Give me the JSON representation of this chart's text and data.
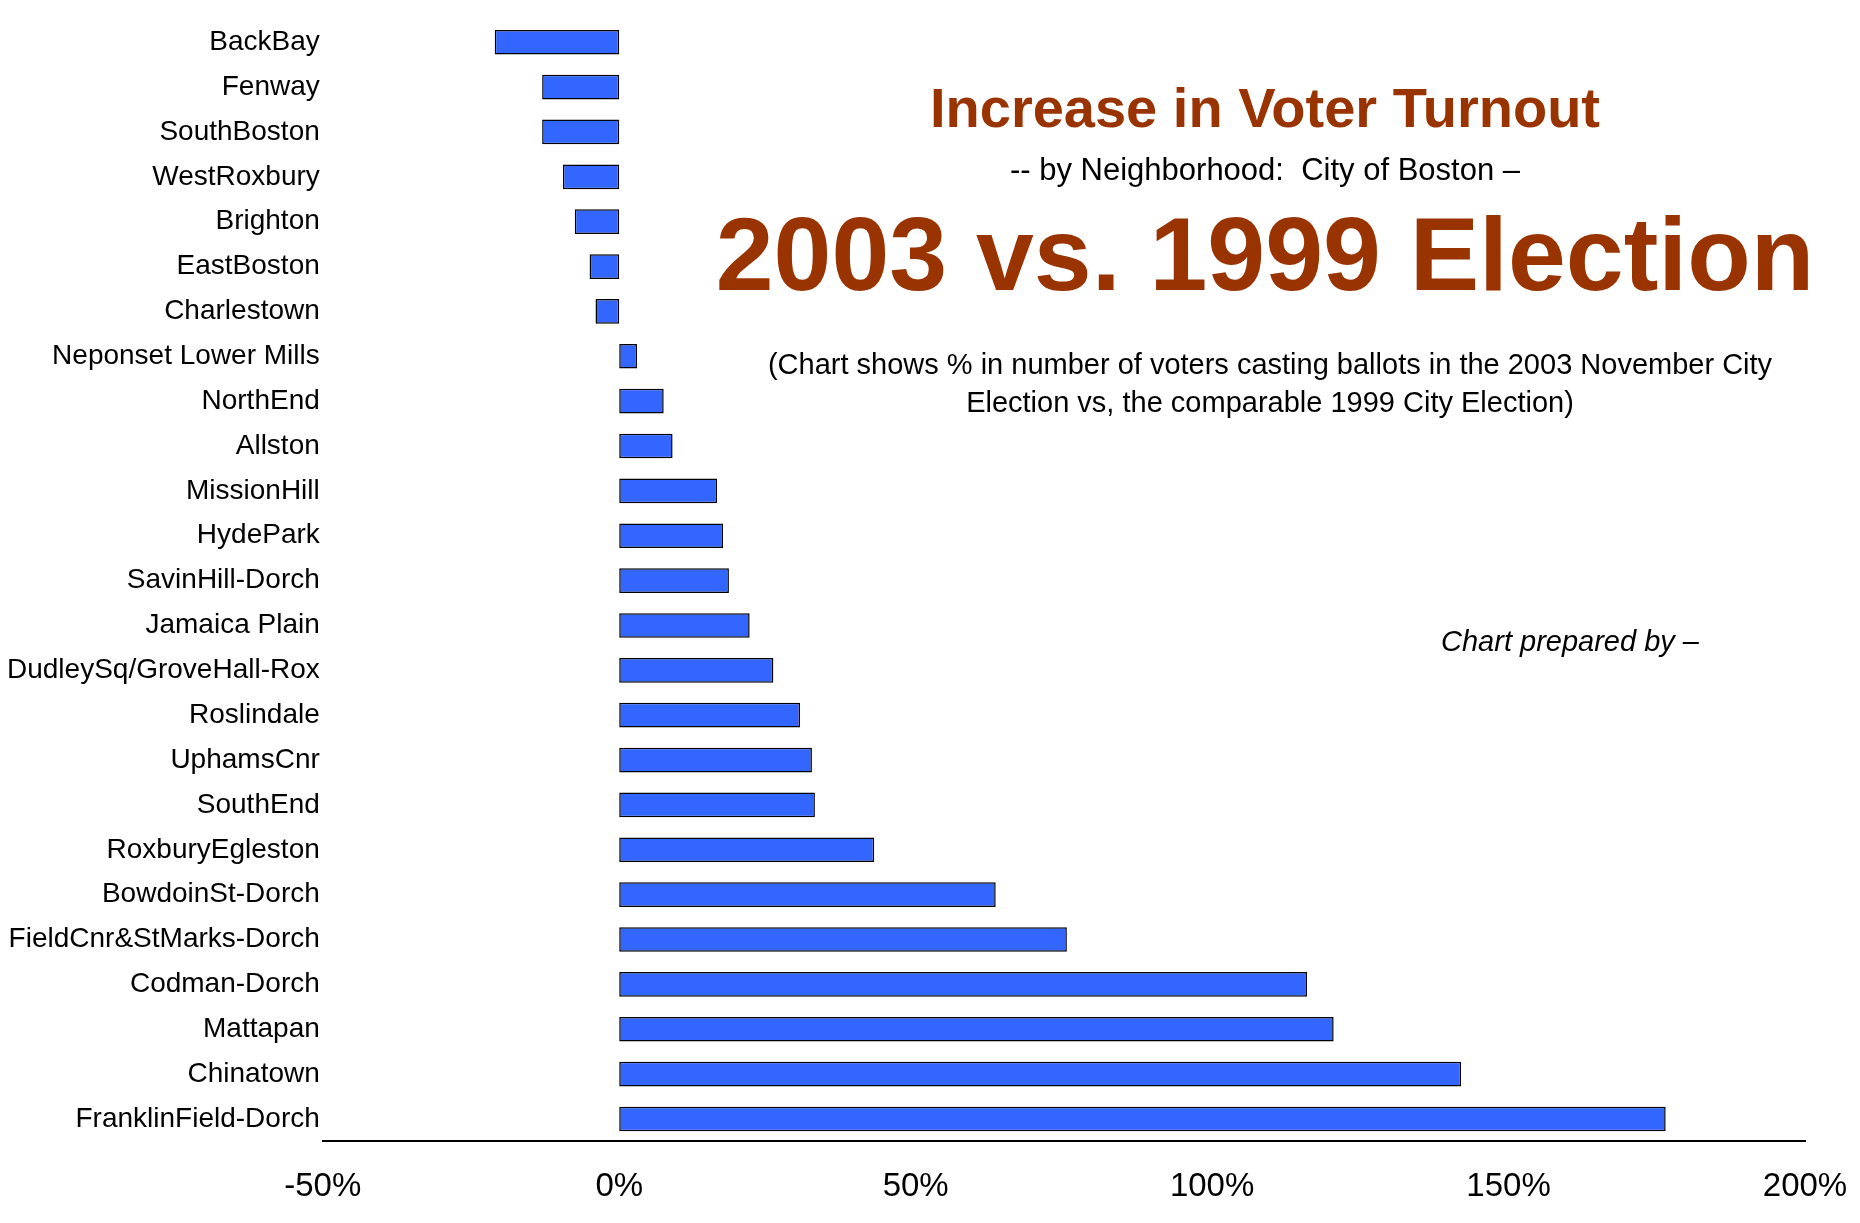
{
  "chart_data": {
    "type": "bar",
    "orientation": "horizontal",
    "title": "Increase in Voter Turnout",
    "subtitle": "-- by Neighborhood:  City of Boston –",
    "annotations": [
      "2003 vs. 1999 Election",
      "(Chart shows % in number of voters casting ballots in the 2003 November City Election vs, the comparable 1999 City Election)",
      "Chart prepared by –"
    ],
    "categories": [
      "BackBay",
      "Fenway",
      "SouthBoston",
      "WestRoxbury",
      "Brighton",
      "EastBoston",
      "Charlestown",
      "Neponset Lower Mills",
      "NorthEnd",
      "Allston",
      "MissionHill",
      "HydePark",
      "SavinHill-Dorch",
      "Jamaica Plain",
      "DudleySq/GroveHall-Rox",
      "Roslindale",
      "UphamsCnr",
      "SouthEnd",
      "RoxburyEgleston",
      "BowdoinSt-Dorch",
      "FieldCnr&StMarks-Dorch",
      "Codman-Dorch",
      "Mattapan",
      "Chinatown",
      "FranklinField-Dorch"
    ],
    "values": [
      -21,
      -13,
      -13,
      -9.5,
      -7.5,
      -5,
      -4,
      3,
      7.5,
      9,
      16.5,
      17.5,
      18.5,
      22,
      26,
      30.5,
      32.5,
      33,
      43,
      63.5,
      75.5,
      116,
      120.5,
      142,
      176.5
    ],
    "color": "#3366ff",
    "xlim": [
      -50,
      200
    ],
    "xticks": [
      {
        "value": -50,
        "label": "-50%"
      },
      {
        "value": 0,
        "label": "0%"
      },
      {
        "value": 50,
        "label": "50%"
      },
      {
        "value": 100,
        "label": "100%"
      },
      {
        "value": 150,
        "label": "150%"
      },
      {
        "value": 200,
        "label": "200%"
      }
    ],
    "grid": false,
    "legend": false
  }
}
